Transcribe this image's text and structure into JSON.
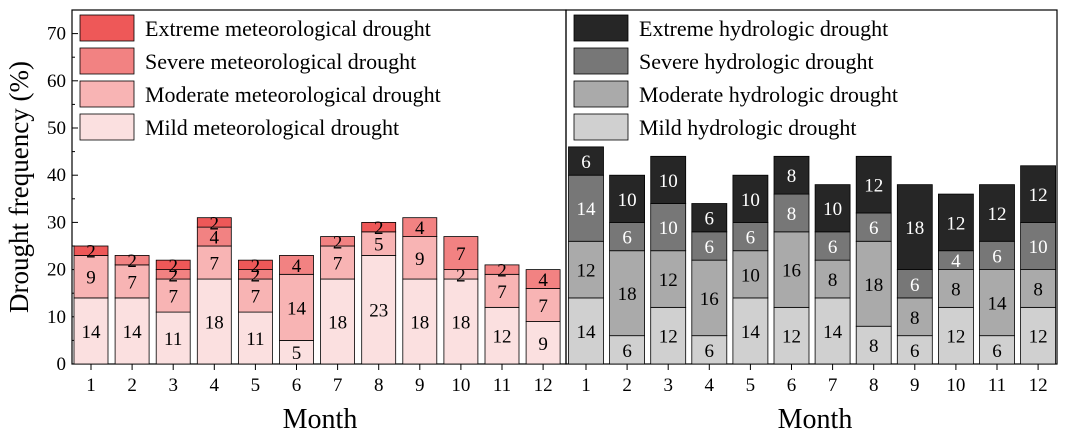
{
  "chart_data": [
    {
      "type": "bar",
      "stacked": true,
      "panel": "meteorological",
      "categories": [
        "1",
        "2",
        "3",
        "4",
        "5",
        "6",
        "7",
        "8",
        "9",
        "10",
        "11",
        "12"
      ],
      "xlabel": "Month",
      "ylabel": "Drought frequency (%)",
      "ylim": [
        0,
        75
      ],
      "yticks": [
        0,
        10,
        20,
        30,
        40,
        50,
        60,
        70
      ],
      "legend_position": "top-left",
      "series": [
        {
          "name": "Mild meteorological drought",
          "color": "#fbe0e0",
          "label_color": "#000000",
          "values": [
            14,
            14,
            11,
            18,
            11,
            5,
            18,
            23,
            18,
            18,
            12,
            9
          ],
          "labels": [
            "14",
            "14",
            "11",
            "18",
            "11",
            "5",
            "18",
            "23",
            "18",
            "18",
            "12",
            "9"
          ]
        },
        {
          "name": "Moderate meteorological drought",
          "color": "#f8b4b4",
          "label_color": "#000000",
          "values": [
            9,
            7,
            7,
            7,
            7,
            14,
            7,
            5,
            9,
            2,
            7,
            7
          ],
          "labels": [
            "9",
            "7",
            "7",
            "7",
            "7",
            "14",
            "7",
            "5",
            "9",
            "2",
            "7",
            "7"
          ]
        },
        {
          "name": "Severe meteorological drought",
          "color": "#f28282",
          "label_color": "#000000",
          "values": [
            0,
            2,
            2,
            4,
            2,
            4,
            2,
            0,
            4,
            7,
            2,
            4
          ],
          "labels": [
            "",
            "2",
            "2",
            "4",
            "2",
            "4",
            "2",
            "",
            "4",
            "7",
            "2",
            "4"
          ]
        },
        {
          "name": "Extreme meteorological drought",
          "color": "#ee5858",
          "label_color": "#000000",
          "values": [
            2,
            0,
            2,
            2,
            2,
            0,
            0,
            2,
            0,
            0,
            0,
            0
          ],
          "labels": [
            "2",
            "",
            "2",
            "2",
            "2",
            "",
            "",
            "2",
            "",
            "",
            "",
            ""
          ]
        }
      ]
    },
    {
      "type": "bar",
      "stacked": true,
      "panel": "hydrologic",
      "categories": [
        "1",
        "2",
        "3",
        "4",
        "5",
        "6",
        "7",
        "8",
        "9",
        "10",
        "11",
        "12"
      ],
      "xlabel": "Month",
      "ylabel": "",
      "ylim": [
        0,
        75
      ],
      "legend_position": "top-left",
      "series": [
        {
          "name": "Mild hydrologic drought",
          "color": "#d0d0d0",
          "label_color": "#000000",
          "values": [
            14,
            6,
            12,
            6,
            14,
            12,
            14,
            8,
            6,
            12,
            6,
            12
          ],
          "labels": [
            "14",
            "6",
            "12",
            "6",
            "14",
            "12",
            "14",
            "8",
            "6",
            "12",
            "6",
            "12"
          ]
        },
        {
          "name": "Moderate hydrologic drought",
          "color": "#aaaaaa",
          "label_color": "#000000",
          "values": [
            12,
            18,
            12,
            16,
            10,
            16,
            8,
            18,
            8,
            8,
            14,
            8
          ],
          "labels": [
            "12",
            "18",
            "12",
            "16",
            "10",
            "16",
            "8",
            "18",
            "8",
            "8",
            "14",
            "8"
          ]
        },
        {
          "name": "Severe hydrologic drought",
          "color": "#777777",
          "label_color": "#ffffff",
          "values": [
            14,
            6,
            10,
            6,
            6,
            8,
            6,
            6,
            6,
            4,
            6,
            10
          ],
          "labels": [
            "14",
            "6",
            "10",
            "6",
            "6",
            "8",
            "6",
            "6",
            "6",
            "4",
            "6",
            "10"
          ]
        },
        {
          "name": "Extreme hydrologic drought",
          "color": "#262626",
          "label_color": "#ffffff",
          "values": [
            6,
            10,
            10,
            6,
            10,
            8,
            10,
            12,
            18,
            12,
            12,
            12
          ],
          "labels": [
            "6",
            "10",
            "10",
            "6",
            "10",
            "8",
            "10",
            "12",
            "18",
            "12",
            "12",
            "12"
          ]
        }
      ]
    }
  ]
}
